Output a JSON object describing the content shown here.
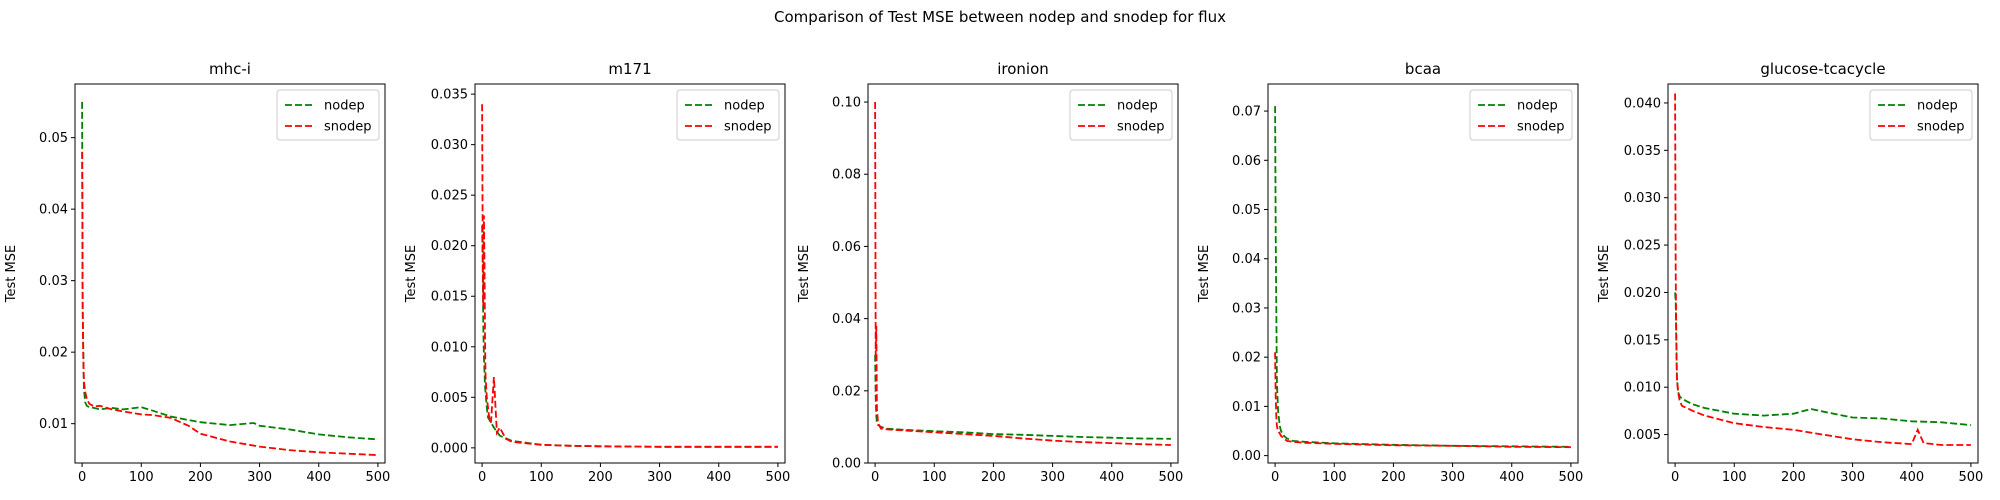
{
  "figure": {
    "suptitle": "Comparison of Test MSE between nodep and snodep for flux"
  },
  "colors": {
    "nodep": "#008000",
    "snodep": "#ff0000"
  },
  "chart_data": [
    {
      "type": "line",
      "title": "mhc-i",
      "xlabel": "",
      "ylabel": "Test MSE",
      "xlim": [
        -12,
        512
      ],
      "ylim": [
        0.0045,
        0.0575
      ],
      "xticks": [
        0,
        100,
        200,
        300,
        400,
        500
      ],
      "yticks": [
        0.01,
        0.02,
        0.03,
        0.04,
        0.05
      ],
      "ytick_labels": [
        "0.01",
        "0.02",
        "0.03",
        "0.04",
        "0.05"
      ],
      "legend": "top-right",
      "series": [
        {
          "name": "nodep",
          "color": "#008000",
          "x": [
            0,
            1,
            2,
            3,
            5,
            8,
            12,
            20,
            30,
            50,
            70,
            100,
            120,
            150,
            180,
            200,
            250,
            290,
            300,
            350,
            400,
            450,
            500
          ],
          "y": [
            0.055,
            0.026,
            0.02,
            0.015,
            0.013,
            0.0125,
            0.0123,
            0.0122,
            0.012,
            0.0122,
            0.012,
            0.0123,
            0.0118,
            0.011,
            0.0105,
            0.0102,
            0.0098,
            0.0101,
            0.0097,
            0.0092,
            0.0085,
            0.0081,
            0.0078
          ]
        },
        {
          "name": "snodep",
          "color": "#ff0000",
          "x": [
            0,
            1,
            2,
            3,
            5,
            8,
            12,
            20,
            30,
            50,
            70,
            100,
            120,
            150,
            180,
            200,
            250,
            300,
            350,
            400,
            450,
            500
          ],
          "y": [
            0.048,
            0.026,
            0.019,
            0.016,
            0.0145,
            0.0135,
            0.0128,
            0.0124,
            0.0125,
            0.012,
            0.0117,
            0.0113,
            0.0112,
            0.0108,
            0.0097,
            0.0086,
            0.0075,
            0.0068,
            0.0063,
            0.006,
            0.0058,
            0.0056
          ]
        }
      ]
    },
    {
      "type": "line",
      "title": "m171",
      "xlabel": "",
      "ylabel": "Test MSE",
      "xlim": [
        -12,
        512
      ],
      "ylim": [
        -0.0015,
        0.036
      ],
      "xticks": [
        0,
        100,
        200,
        300,
        400,
        500
      ],
      "yticks": [
        0.0,
        0.005,
        0.01,
        0.015,
        0.02,
        0.025,
        0.03,
        0.035
      ],
      "ytick_labels": [
        "0.000",
        "0.005",
        "0.010",
        "0.015",
        "0.020",
        "0.025",
        "0.030",
        "0.035"
      ],
      "legend": "top-right",
      "series": [
        {
          "name": "nodep",
          "color": "#008000",
          "x": [
            0,
            1,
            2,
            3,
            5,
            8,
            10,
            15,
            20,
            30,
            50,
            100,
            150,
            200,
            300,
            400,
            500
          ],
          "y": [
            0.022,
            0.018,
            0.012,
            0.009,
            0.006,
            0.004,
            0.003,
            0.0025,
            0.002,
            0.0012,
            0.0007,
            0.0003,
            0.0002,
            0.00015,
            0.0001,
            0.0001,
            0.0001
          ]
        },
        {
          "name": "snodep",
          "color": "#ff0000",
          "x": [
            0,
            1,
            2,
            3,
            4,
            5,
            6,
            8,
            10,
            12,
            15,
            20,
            25,
            30,
            40,
            50,
            100,
            150,
            200,
            300,
            400,
            500
          ],
          "y": [
            0.034,
            0.02,
            0.014,
            0.023,
            0.018,
            0.01,
            0.007,
            0.005,
            0.004,
            0.003,
            0.0025,
            0.007,
            0.0015,
            0.002,
            0.0009,
            0.0006,
            0.0003,
            0.0002,
            0.00015,
            0.0001,
            0.0001,
            0.0001
          ]
        }
      ]
    },
    {
      "type": "line",
      "title": "ironion",
      "xlabel": "",
      "ylabel": "Test MSE",
      "xlim": [
        -12,
        512
      ],
      "ylim": [
        0.0,
        0.105
      ],
      "xticks": [
        0,
        100,
        200,
        300,
        400,
        500
      ],
      "yticks": [
        0.0,
        0.02,
        0.04,
        0.06,
        0.08,
        0.1
      ],
      "ytick_labels": [
        "0.00",
        "0.02",
        "0.04",
        "0.06",
        "0.08",
        "0.10"
      ],
      "legend": "top-right",
      "series": [
        {
          "name": "nodep",
          "color": "#008000",
          "x": [
            0,
            1,
            2,
            3,
            5,
            10,
            20,
            50,
            100,
            150,
            200,
            250,
            300,
            350,
            400,
            450,
            500
          ],
          "y": [
            0.03,
            0.018,
            0.013,
            0.011,
            0.0105,
            0.01,
            0.0095,
            0.0092,
            0.0088,
            0.0085,
            0.008,
            0.0078,
            0.0075,
            0.0072,
            0.007,
            0.0068,
            0.0067
          ]
        },
        {
          "name": "snodep",
          "color": "#ff0000",
          "x": [
            0,
            1,
            2,
            3,
            5,
            10,
            20,
            50,
            100,
            150,
            200,
            250,
            300,
            350,
            400,
            450,
            500
          ],
          "y": [
            0.1,
            0.03,
            0.038,
            0.015,
            0.011,
            0.0095,
            0.0093,
            0.009,
            0.0085,
            0.008,
            0.0075,
            0.0068,
            0.0062,
            0.0058,
            0.0055,
            0.0052,
            0.005
          ]
        }
      ]
    },
    {
      "type": "line",
      "title": "bcaa",
      "xlabel": "",
      "ylabel": "Test MSE",
      "xlim": [
        -12,
        512
      ],
      "ylim": [
        -0.0015,
        0.0755
      ],
      "xticks": [
        0,
        100,
        200,
        300,
        400,
        500
      ],
      "yticks": [
        0.0,
        0.01,
        0.02,
        0.03,
        0.04,
        0.05,
        0.06,
        0.07
      ],
      "ytick_labels": [
        "0.00",
        "0.01",
        "0.02",
        "0.03",
        "0.04",
        "0.05",
        "0.06",
        "0.07"
      ],
      "legend": "top-right",
      "series": [
        {
          "name": "nodep",
          "color": "#008000",
          "x": [
            0,
            1,
            2,
            3,
            5,
            8,
            10,
            15,
            20,
            30,
            50,
            100,
            200,
            300,
            400,
            500
          ],
          "y": [
            0.071,
            0.045,
            0.03,
            0.015,
            0.009,
            0.006,
            0.005,
            0.004,
            0.0035,
            0.003,
            0.0028,
            0.0025,
            0.0022,
            0.002,
            0.0019,
            0.0018
          ]
        },
        {
          "name": "snodep",
          "color": "#ff0000",
          "x": [
            0,
            1,
            2,
            3,
            5,
            8,
            10,
            15,
            20,
            30,
            50,
            100,
            200,
            300,
            400,
            500
          ],
          "y": [
            0.021,
            0.012,
            0.008,
            0.006,
            0.005,
            0.0045,
            0.004,
            0.0035,
            0.003,
            0.0028,
            0.0026,
            0.0024,
            0.0021,
            0.002,
            0.0018,
            0.0017
          ]
        }
      ]
    },
    {
      "type": "line",
      "title": "glucose-tcacycle",
      "xlabel": "",
      "ylabel": "Test MSE",
      "xlim": [
        -12,
        512
      ],
      "ylim": [
        0.002,
        0.042
      ],
      "xticks": [
        0,
        100,
        200,
        300,
        400,
        500
      ],
      "yticks": [
        0.005,
        0.01,
        0.015,
        0.02,
        0.025,
        0.03,
        0.035,
        0.04
      ],
      "ytick_labels": [
        "0.005",
        "0.010",
        "0.015",
        "0.020",
        "0.025",
        "0.030",
        "0.035",
        "0.040"
      ],
      "legend": "top-right",
      "series": [
        {
          "name": "nodep",
          "color": "#008000",
          "x": [
            0,
            1,
            2,
            3,
            5,
            8,
            12,
            20,
            30,
            50,
            100,
            150,
            200,
            230,
            260,
            300,
            350,
            400,
            450,
            500
          ],
          "y": [
            0.02,
            0.019,
            0.015,
            0.011,
            0.0095,
            0.009,
            0.0088,
            0.0085,
            0.0082,
            0.0078,
            0.0072,
            0.007,
            0.0072,
            0.0077,
            0.0073,
            0.0068,
            0.0067,
            0.0064,
            0.0063,
            0.006
          ]
        },
        {
          "name": "snodep",
          "color": "#ff0000",
          "x": [
            0,
            1,
            2,
            3,
            5,
            8,
            12,
            20,
            30,
            50,
            100,
            150,
            200,
            250,
            300,
            350,
            400,
            410,
            420,
            450,
            500
          ],
          "y": [
            0.041,
            0.022,
            0.015,
            0.011,
            0.0095,
            0.0085,
            0.008,
            0.0078,
            0.0075,
            0.007,
            0.0062,
            0.0058,
            0.0055,
            0.005,
            0.0045,
            0.0042,
            0.004,
            0.0055,
            0.0041,
            0.0039,
            0.0039
          ]
        }
      ]
    }
  ]
}
